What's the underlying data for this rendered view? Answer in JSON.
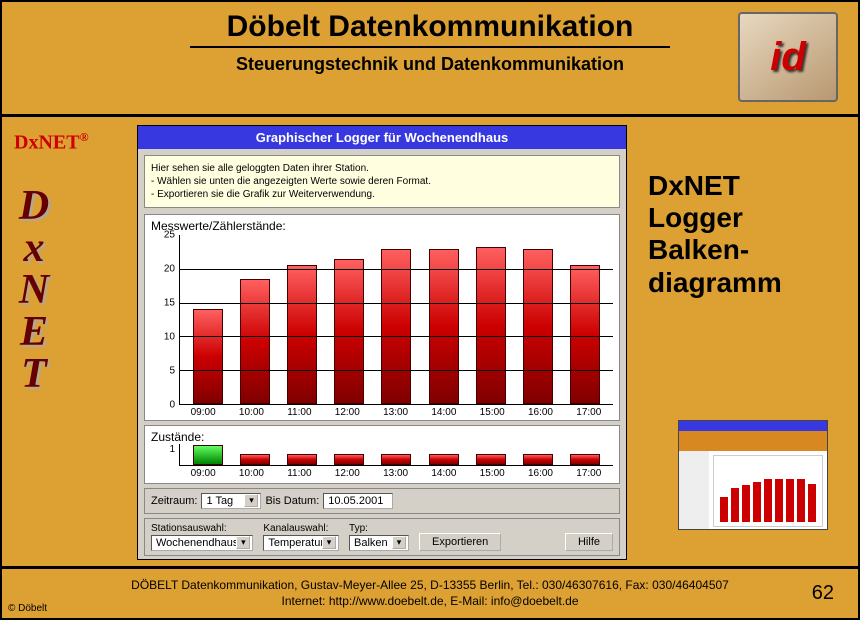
{
  "header": {
    "title": "Döbelt Datenkommunikation",
    "subtitle": "Steuerungstechnik und Datenkommunikation",
    "logo_text": "id"
  },
  "sidebar": {
    "brand": "DxNET",
    "reg": "®",
    "vertical": [
      "D",
      "x",
      "N",
      "E",
      "T"
    ]
  },
  "window": {
    "title": "Graphischer Logger für Wochenendhaus",
    "info_lines": [
      "Hier sehen sie alle geloggten Daten ihrer Station.",
      "- Wählen sie unten die angezeigten Werte sowie deren Format.",
      "- Exportieren sie die Grafik zur Weiterverwendung."
    ],
    "chart": {
      "title": "Messwerte/Zählerstände:",
      "type": "bar",
      "y_ticks": [
        0,
        5,
        10,
        15,
        20,
        25
      ],
      "ylim": [
        0,
        25
      ],
      "categories": [
        "09:00",
        "10:00",
        "11:00",
        "12:00",
        "13:00",
        "14:00",
        "15:00",
        "16:00",
        "17:00"
      ],
      "values": [
        14,
        18.5,
        20.5,
        21.5,
        23,
        23,
        23.2,
        23,
        20.5
      ],
      "bar_gradient": [
        "#ff6060",
        "#cc0000",
        "#800000"
      ],
      "grid_color": "#000000",
      "background_color": "#ffffff"
    },
    "status": {
      "title": "Zustände:",
      "y_label": "1",
      "categories": [
        "09:00",
        "10:00",
        "11:00",
        "12:00",
        "13:00",
        "14:00",
        "15:00",
        "16:00",
        "17:00"
      ],
      "states": [
        "green",
        "red",
        "red",
        "red",
        "red",
        "red",
        "red",
        "red",
        "red"
      ],
      "colors": {
        "green": [
          "#60ff60",
          "#008000"
        ],
        "red": [
          "#ff6060",
          "#800000"
        ]
      }
    },
    "time_row": {
      "zeitraum_label": "Zeitraum:",
      "zeitraum_value": "1 Tag",
      "bis_label": "Bis Datum:",
      "bis_value": "10.05.2001"
    },
    "bottom": {
      "station_label": "Stationsauswahl:",
      "station_value": "Wochenendhaus",
      "kanal_label": "Kanalauswahl:",
      "kanal_value": "Temperatur",
      "typ_label": "Typ:",
      "typ_value": "Balken",
      "export_btn": "Exportieren",
      "help_btn": "Hilfe"
    }
  },
  "right": {
    "title_lines": [
      "DxNET",
      "Logger",
      "Balken-",
      "diagramm"
    ]
  },
  "footer": {
    "copyright": "© Döbelt",
    "line1": "DÖBELT Datenkommunikation, Gustav-Meyer-Allee 25, D-13355 Berlin, Tel.: 030/46307616, Fax: 030/46404507",
    "line2": "Internet: http://www.doebelt.de, E-Mail: info@doebelt.de",
    "page": "62"
  }
}
